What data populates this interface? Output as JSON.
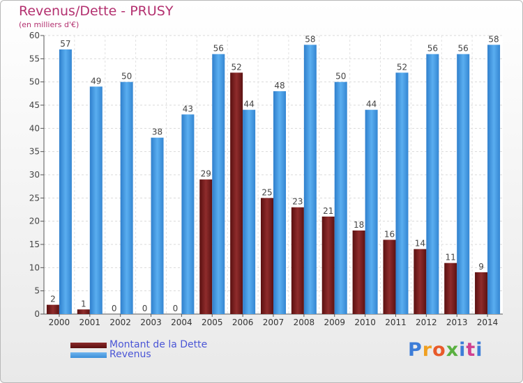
{
  "brand": "Proxiti",
  "chart_data": {
    "type": "bar",
    "title": "Revenus/Dette - PRUSY",
    "subtitle": "(en milliers d'€)",
    "categories": [
      "2000",
      "2001",
      "2002",
      "2003",
      "2004",
      "2005",
      "2006",
      "2007",
      "2008",
      "2009",
      "2010",
      "2011",
      "2012",
      "2013",
      "2014"
    ],
    "series": [
      {
        "name": "Montant de la Dette",
        "color": "#7a1c1c",
        "values": [
          2,
          1,
          0,
          0,
          0,
          29,
          52,
          25,
          23,
          21,
          18,
          16,
          14,
          11,
          9
        ]
      },
      {
        "name": "Revenus",
        "color": "#4a9fe6",
        "values": [
          57,
          49,
          50,
          38,
          43,
          56,
          44,
          48,
          58,
          50,
          44,
          52,
          56,
          56,
          58
        ]
      }
    ],
    "ylim": [
      0,
      60
    ],
    "yticks": [
      0,
      5,
      10,
      15,
      20,
      25,
      30,
      35,
      40,
      45,
      50,
      55,
      60
    ],
    "grid": true,
    "legend_position": "bottom-left"
  }
}
